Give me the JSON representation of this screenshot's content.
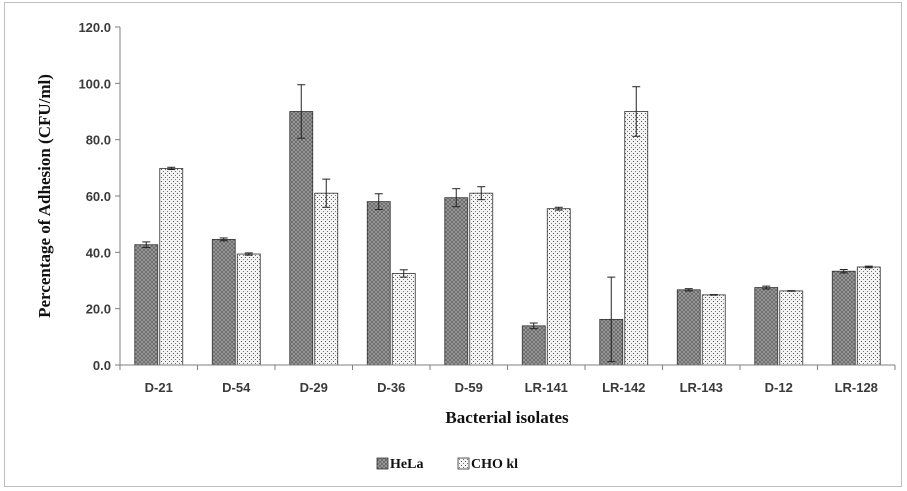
{
  "chart_data": {
    "type": "bar",
    "xlabel": "Bacterial isolates",
    "ylabel": "Percentage  of Adhesion (CFU/ml)",
    "ylim": [
      0,
      120
    ],
    "yticks": [
      "0.0",
      "20.0",
      "40.0",
      "60.0",
      "80.0",
      "100.0",
      "120.0"
    ],
    "grid": false,
    "legend_position": "bottom",
    "categories": [
      "D-21",
      "D-54",
      "D-29",
      "D-36",
      "D-59",
      "LR-141",
      "LR-142",
      "LR-143",
      "D-12",
      "LR-128"
    ],
    "series": [
      {
        "name": "HeLa",
        "pattern": "crosshatch-dark",
        "values": [
          42.7,
          44.6,
          90.0,
          58.0,
          59.4,
          13.9,
          16.2,
          26.7,
          27.5,
          33.3
        ],
        "errors": [
          1.0,
          0.5,
          9.5,
          2.8,
          3.2,
          1.0,
          15.0,
          0.4,
          0.5,
          0.6
        ]
      },
      {
        "name": "CHO kl",
        "pattern": "dots-light",
        "values": [
          69.8,
          39.4,
          61.0,
          32.5,
          61.0,
          55.5,
          90.0,
          24.9,
          26.3,
          34.8
        ],
        "errors": [
          0.4,
          0.4,
          5.0,
          1.3,
          2.3,
          0.5,
          8.8,
          0.1,
          0.1,
          0.3
        ]
      }
    ]
  }
}
